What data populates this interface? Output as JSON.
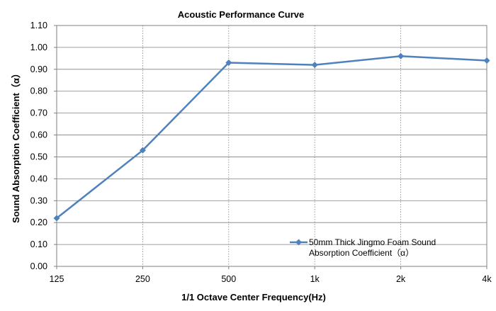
{
  "chart_data": {
    "type": "line",
    "title": "Acoustic Performance Curve",
    "xlabel": "1/1 Octave Center Frequency(Hz)",
    "ylabel": "Sound Absorption Coefficient（α）",
    "categories": [
      "125",
      "250",
      "500",
      "1k",
      "2k",
      "4k"
    ],
    "y_tick_labels": [
      "0.00",
      "0.10",
      "0.20",
      "0.30",
      "0.40",
      "0.50",
      "0.60",
      "0.70",
      "0.80",
      "0.90",
      "1.00",
      "1.10"
    ],
    "ylim": [
      0,
      1.1
    ],
    "grid": {
      "x": "dotted vertical",
      "y": "solid horizontal"
    },
    "legend_position": "bottom-right",
    "series": [
      {
        "name": "50mm Thick Jingmo Foam Sound Absorption Coefficient（α）",
        "legend_lines": [
          "50mm Thick Jingmo Foam Sound",
          "Absorption Coefficient（α）"
        ],
        "values": [
          0.22,
          0.53,
          0.93,
          0.92,
          0.96,
          0.94
        ],
        "color": "#4f81bd",
        "marker": "diamond"
      }
    ]
  }
}
